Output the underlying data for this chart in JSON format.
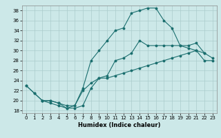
{
  "xlabel": "Humidex (Indice chaleur)",
  "bg_color": "#cce8e8",
  "grid_color": "#aacccc",
  "line_color": "#1a6e6e",
  "xlim": [
    -0.5,
    23.5
  ],
  "ylim": [
    17.5,
    39.0
  ],
  "yticks": [
    18,
    20,
    22,
    24,
    26,
    28,
    30,
    32,
    34,
    36,
    38
  ],
  "xticks": [
    0,
    1,
    2,
    3,
    4,
    5,
    6,
    7,
    8,
    9,
    10,
    11,
    12,
    13,
    14,
    15,
    16,
    17,
    18,
    19,
    20,
    21,
    22,
    23
  ],
  "curve1_x": [
    0,
    1,
    2,
    3,
    4,
    5,
    6,
    7,
    8,
    9,
    10,
    11,
    12,
    13,
    14,
    15,
    16,
    17,
    18,
    19,
    20,
    21,
    22
  ],
  "curve1_y": [
    23,
    21.5,
    20,
    19.5,
    19.0,
    18.5,
    19.0,
    22.5,
    28.0,
    30.0,
    32.0,
    34.0,
    34.5,
    37.5,
    38.0,
    38.5,
    38.5,
    36.0,
    34.5,
    31.0,
    30.5,
    30.0,
    29.5
  ],
  "curve2_x": [
    0,
    1,
    2,
    3,
    4,
    5,
    6,
    7,
    8,
    9,
    10,
    11,
    12,
    13,
    14,
    15,
    16,
    17,
    18,
    19,
    20,
    21,
    22,
    23
  ],
  "curve2_y": [
    23,
    21.5,
    20,
    20.0,
    19.5,
    19.0,
    19.0,
    22.0,
    23.5,
    24.5,
    24.5,
    25.0,
    25.5,
    26.0,
    26.5,
    27.0,
    27.5,
    28.0,
    28.5,
    29.0,
    29.5,
    30.0,
    28.0,
    28.0
  ],
  "curve3_x": [
    2,
    3,
    4,
    5,
    6,
    7,
    8,
    9,
    10,
    11,
    12,
    13,
    14,
    15,
    16,
    17,
    18,
    19,
    20,
    21,
    22,
    23
  ],
  "curve3_y": [
    20.0,
    20.0,
    19.5,
    18.5,
    18.5,
    19.0,
    22.5,
    24.5,
    25.0,
    28.0,
    28.5,
    29.5,
    32.0,
    31.0,
    31.0,
    31.0,
    31.0,
    31.0,
    31.0,
    31.5,
    29.5,
    28.5
  ],
  "tick_fontsize": 5.0,
  "xlabel_fontsize": 6.0,
  "linewidth": 0.8,
  "markersize": 1.8
}
